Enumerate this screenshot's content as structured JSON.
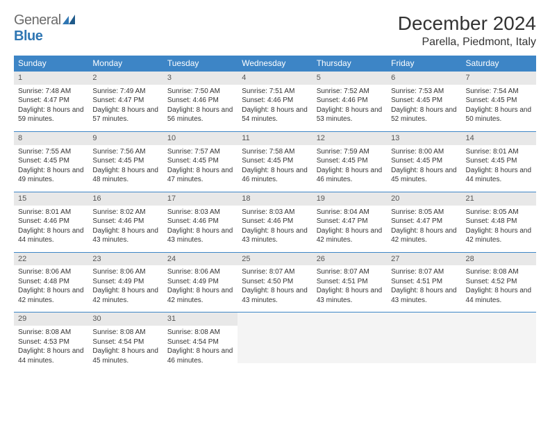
{
  "brand": {
    "part1": "General",
    "part2": "Blue"
  },
  "title": "December 2024",
  "location": "Parella, Piedmont, Italy",
  "colors": {
    "header_bg": "#3d85c6",
    "header_text": "#ffffff",
    "daynum_bg": "#e8e8e8",
    "cell_border": "#3d85c6",
    "body_text": "#333333",
    "logo_gray": "#6b6b6b",
    "logo_blue": "#2f76b3"
  },
  "typography": {
    "title_fontsize": 28,
    "location_fontsize": 16,
    "weekday_fontsize": 12,
    "daynum_fontsize": 11,
    "body_fontsize": 10
  },
  "weekdays": [
    "Sunday",
    "Monday",
    "Tuesday",
    "Wednesday",
    "Thursday",
    "Friday",
    "Saturday"
  ],
  "weeks": [
    [
      {
        "n": "1",
        "sr": "7:48 AM",
        "ss": "4:47 PM",
        "dl": "8 hours and 59 minutes."
      },
      {
        "n": "2",
        "sr": "7:49 AM",
        "ss": "4:47 PM",
        "dl": "8 hours and 57 minutes."
      },
      {
        "n": "3",
        "sr": "7:50 AM",
        "ss": "4:46 PM",
        "dl": "8 hours and 56 minutes."
      },
      {
        "n": "4",
        "sr": "7:51 AM",
        "ss": "4:46 PM",
        "dl": "8 hours and 54 minutes."
      },
      {
        "n": "5",
        "sr": "7:52 AM",
        "ss": "4:46 PM",
        "dl": "8 hours and 53 minutes."
      },
      {
        "n": "6",
        "sr": "7:53 AM",
        "ss": "4:45 PM",
        "dl": "8 hours and 52 minutes."
      },
      {
        "n": "7",
        "sr": "7:54 AM",
        "ss": "4:45 PM",
        "dl": "8 hours and 50 minutes."
      }
    ],
    [
      {
        "n": "8",
        "sr": "7:55 AM",
        "ss": "4:45 PM",
        "dl": "8 hours and 49 minutes."
      },
      {
        "n": "9",
        "sr": "7:56 AM",
        "ss": "4:45 PM",
        "dl": "8 hours and 48 minutes."
      },
      {
        "n": "10",
        "sr": "7:57 AM",
        "ss": "4:45 PM",
        "dl": "8 hours and 47 minutes."
      },
      {
        "n": "11",
        "sr": "7:58 AM",
        "ss": "4:45 PM",
        "dl": "8 hours and 46 minutes."
      },
      {
        "n": "12",
        "sr": "7:59 AM",
        "ss": "4:45 PM",
        "dl": "8 hours and 46 minutes."
      },
      {
        "n": "13",
        "sr": "8:00 AM",
        "ss": "4:45 PM",
        "dl": "8 hours and 45 minutes."
      },
      {
        "n": "14",
        "sr": "8:01 AM",
        "ss": "4:45 PM",
        "dl": "8 hours and 44 minutes."
      }
    ],
    [
      {
        "n": "15",
        "sr": "8:01 AM",
        "ss": "4:46 PM",
        "dl": "8 hours and 44 minutes."
      },
      {
        "n": "16",
        "sr": "8:02 AM",
        "ss": "4:46 PM",
        "dl": "8 hours and 43 minutes."
      },
      {
        "n": "17",
        "sr": "8:03 AM",
        "ss": "4:46 PM",
        "dl": "8 hours and 43 minutes."
      },
      {
        "n": "18",
        "sr": "8:03 AM",
        "ss": "4:46 PM",
        "dl": "8 hours and 43 minutes."
      },
      {
        "n": "19",
        "sr": "8:04 AM",
        "ss": "4:47 PM",
        "dl": "8 hours and 42 minutes."
      },
      {
        "n": "20",
        "sr": "8:05 AM",
        "ss": "4:47 PM",
        "dl": "8 hours and 42 minutes."
      },
      {
        "n": "21",
        "sr": "8:05 AM",
        "ss": "4:48 PM",
        "dl": "8 hours and 42 minutes."
      }
    ],
    [
      {
        "n": "22",
        "sr": "8:06 AM",
        "ss": "4:48 PM",
        "dl": "8 hours and 42 minutes."
      },
      {
        "n": "23",
        "sr": "8:06 AM",
        "ss": "4:49 PM",
        "dl": "8 hours and 42 minutes."
      },
      {
        "n": "24",
        "sr": "8:06 AM",
        "ss": "4:49 PM",
        "dl": "8 hours and 42 minutes."
      },
      {
        "n": "25",
        "sr": "8:07 AM",
        "ss": "4:50 PM",
        "dl": "8 hours and 43 minutes."
      },
      {
        "n": "26",
        "sr": "8:07 AM",
        "ss": "4:51 PM",
        "dl": "8 hours and 43 minutes."
      },
      {
        "n": "27",
        "sr": "8:07 AM",
        "ss": "4:51 PM",
        "dl": "8 hours and 43 minutes."
      },
      {
        "n": "28",
        "sr": "8:08 AM",
        "ss": "4:52 PM",
        "dl": "8 hours and 44 minutes."
      }
    ],
    [
      {
        "n": "29",
        "sr": "8:08 AM",
        "ss": "4:53 PM",
        "dl": "8 hours and 44 minutes."
      },
      {
        "n": "30",
        "sr": "8:08 AM",
        "ss": "4:54 PM",
        "dl": "8 hours and 45 minutes."
      },
      {
        "n": "31",
        "sr": "8:08 AM",
        "ss": "4:54 PM",
        "dl": "8 hours and 46 minutes."
      },
      null,
      null,
      null,
      null
    ]
  ],
  "labels": {
    "sunrise": "Sunrise:",
    "sunset": "Sunset:",
    "daylight": "Daylight:"
  }
}
